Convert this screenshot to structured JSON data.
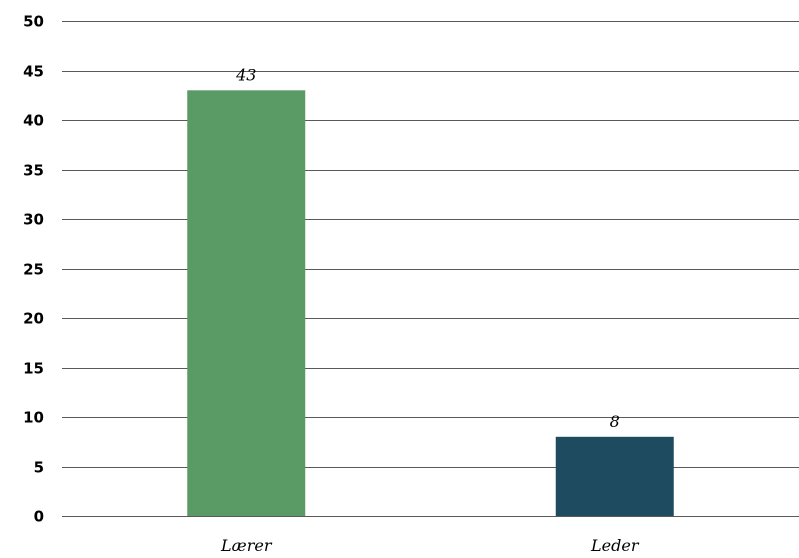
{
  "chart_data": {
    "type": "bar",
    "categories": [
      "Lærer",
      "Leder"
    ],
    "values": [
      43,
      8
    ],
    "bar_colors": [
      "#5a9a64",
      "#1e4b5f"
    ],
    "data_labels": [
      "43",
      "8"
    ],
    "ylim": [
      0,
      50
    ],
    "y_ticks": [
      0,
      5,
      10,
      15,
      20,
      25,
      30,
      35,
      40,
      45,
      50
    ],
    "y_tick_labels": [
      "0",
      "5",
      "10",
      "15",
      "20",
      "25",
      "30",
      "35",
      "40",
      "45",
      "50"
    ],
    "grid": true,
    "legend": "none",
    "title": "",
    "xlabel": "",
    "ylabel": ""
  }
}
